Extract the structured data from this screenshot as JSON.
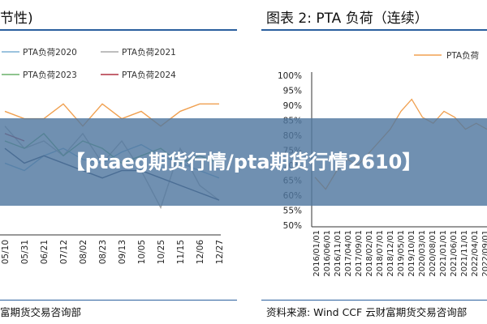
{
  "banner": {
    "text": "【ptaeg期货行情/pta期货行情2610】"
  },
  "left_panel": {
    "title": "节性)",
    "source": "富期货交易咨询部"
  },
  "right_panel": {
    "title": "图表 2:  PTA 负荷（连续）",
    "source": "资料来源:   Wind CCF  云财富期货交易咨询部"
  },
  "chart_data": [
    {
      "type": "line",
      "title": "",
      "xlabel": "",
      "ylabel": "",
      "categories": [
        "05/10",
        "05/31",
        "06/21",
        "07/12",
        "08/02",
        "08/23",
        "09/13",
        "10/05",
        "10/25",
        "11/15",
        "12/06",
        "12/27"
      ],
      "series": [
        {
          "name": "PTA负荷2020",
          "color": "#7bafd4",
          "values": [
            70,
            68,
            72,
            74,
            71,
            70,
            73,
            75,
            72,
            70,
            68,
            66
          ]
        },
        {
          "name": "PTA负荷2021",
          "color": "#a9a9a9",
          "values": [
            80,
            74,
            76,
            72,
            78,
            70,
            76,
            68,
            58,
            74,
            64,
            60
          ]
        },
        {
          "name": "PTA负荷2023",
          "color": "#6ab06a",
          "values": [
            76,
            74,
            78,
            72,
            76,
            74,
            70,
            72,
            74,
            70,
            72,
            70
          ]
        },
        {
          "name": "PTA负荷2024",
          "color": "#b03040",
          "values": [
            78,
            76,
            null,
            null,
            null,
            null,
            null,
            null,
            null,
            null,
            null,
            null
          ]
        },
        {
          "name": "",
          "color": "#f0a050",
          "values": [
            84,
            82,
            82,
            86,
            80,
            86,
            82,
            84,
            80,
            84,
            86,
            86
          ]
        },
        {
          "name": "",
          "color": "#2f3f5f",
          "values": [
            74,
            70,
            72,
            70,
            68,
            66,
            68,
            68,
            66,
            64,
            62,
            60
          ]
        }
      ],
      "legend_placement": "top",
      "grid": false
    },
    {
      "type": "line",
      "title": "",
      "xlabel": "",
      "ylabel": "",
      "y_ticks": [
        "100%",
        "95%",
        "90%",
        "85%",
        "80%",
        "75%",
        "70%",
        "65%",
        "60%",
        "55%",
        "50%"
      ],
      "ylim": [
        50,
        100
      ],
      "categories": [
        "2016/01/01",
        "2016/06/01",
        "2016/11/01",
        "2017/04/01",
        "2017/09/01",
        "2018/02/01",
        "2018/07/01",
        "2018/12/01",
        "2019/05/01",
        "2019/10/01",
        "2020/03/01",
        "2020/08/01",
        "2021/01/01",
        "2021/06/01",
        "2021/11/01",
        "2022/04/01",
        "2022/09/01"
      ],
      "series": [
        {
          "name": "PTA负荷",
          "color": "#f0a050",
          "values": [
            66,
            62,
            68,
            72,
            70,
            74,
            78,
            82,
            88,
            92,
            86,
            84,
            88,
            86,
            82,
            84,
            82
          ]
        }
      ],
      "legend_placement": "top-right",
      "grid": false
    }
  ]
}
